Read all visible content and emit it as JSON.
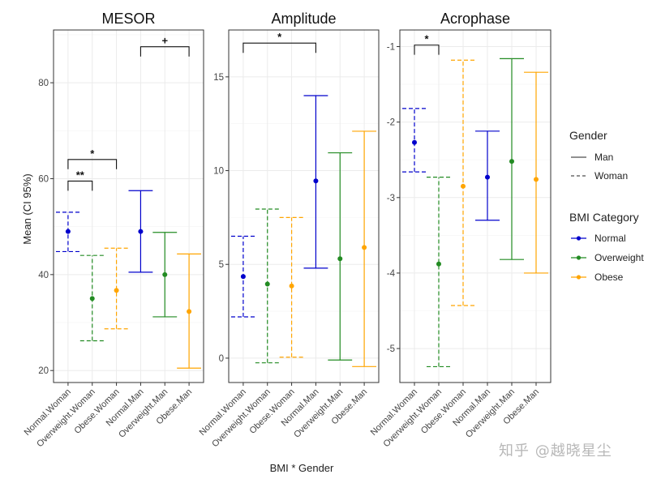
{
  "ylabel": "Mean (CI 95%)",
  "xlabel": "BMI * Gender",
  "categories": [
    "Normal.Woman",
    "Overweight.Woman",
    "Obese.Woman",
    "Normal.Man",
    "Overweight.Man",
    "Obese.Man"
  ],
  "colors": {
    "Normal": "#0000cc",
    "Overweight": "#228b22",
    "Obese": "#ffa500"
  },
  "legend": {
    "gender_title": "Gender",
    "gender_items": [
      "Man",
      "Woman"
    ],
    "bmi_title": "BMI Category",
    "bmi_items": [
      "Normal",
      "Overweight",
      "Obese"
    ]
  },
  "watermark": "知乎 @越晓星尘",
  "chart_data": [
    {
      "type": "errorbar",
      "title": "MESOR",
      "ylim": [
        17.5,
        91
      ],
      "yticks": [
        20,
        40,
        60,
        80
      ],
      "points": [
        {
          "category": "Normal.Woman",
          "bmi": "Normal",
          "gender": "Woman",
          "mean": 49,
          "lower": 44.8,
          "upper": 53
        },
        {
          "category": "Overweight.Woman",
          "bmi": "Overweight",
          "gender": "Woman",
          "mean": 35,
          "lower": 26.2,
          "upper": 44
        },
        {
          "category": "Obese.Woman",
          "bmi": "Obese",
          "gender": "Woman",
          "mean": 36.7,
          "lower": 28.7,
          "upper": 45.5
        },
        {
          "category": "Normal.Man",
          "bmi": "Normal",
          "gender": "Man",
          "mean": 49,
          "lower": 40.5,
          "upper": 57.5
        },
        {
          "category": "Overweight.Man",
          "bmi": "Overweight",
          "gender": "Man",
          "mean": 40,
          "lower": 31.2,
          "upper": 48.8
        },
        {
          "category": "Obese.Man",
          "bmi": "Obese",
          "gender": "Man",
          "mean": 32.3,
          "lower": 20.5,
          "upper": 44.3
        }
      ],
      "brackets": [
        {
          "from": 0,
          "to": 1,
          "y": 59.5,
          "label": "**"
        },
        {
          "from": 0,
          "to": 2,
          "y": 64,
          "label": "*"
        },
        {
          "from": 3,
          "to": 5,
          "y": 87.5,
          "label": "+"
        }
      ]
    },
    {
      "type": "errorbar",
      "title": "Amplitude",
      "ylim": [
        -1.3,
        17.5
      ],
      "yticks": [
        0,
        5,
        10,
        15
      ],
      "points": [
        {
          "category": "Normal.Woman",
          "bmi": "Normal",
          "gender": "Woman",
          "mean": 4.35,
          "lower": 2.2,
          "upper": 6.5
        },
        {
          "category": "Overweight.Woman",
          "bmi": "Overweight",
          "gender": "Woman",
          "mean": 3.95,
          "lower": -0.25,
          "upper": 7.95
        },
        {
          "category": "Obese.Woman",
          "bmi": "Obese",
          "gender": "Woman",
          "mean": 3.85,
          "lower": 0.05,
          "upper": 7.5
        },
        {
          "category": "Normal.Man",
          "bmi": "Normal",
          "gender": "Man",
          "mean": 9.45,
          "lower": 4.8,
          "upper": 14
        },
        {
          "category": "Overweight.Man",
          "bmi": "Overweight",
          "gender": "Man",
          "mean": 5.3,
          "lower": -0.1,
          "upper": 10.95
        },
        {
          "category": "Obese.Man",
          "bmi": "Obese",
          "gender": "Man",
          "mean": 5.9,
          "lower": -0.45,
          "upper": 12.1
        }
      ],
      "brackets": [
        {
          "from": 0,
          "to": 3,
          "y": 16.8,
          "label": "*"
        }
      ]
    },
    {
      "type": "errorbar",
      "title": "Acrophase",
      "ylim": [
        -5.45,
        -0.78
      ],
      "yticks": [
        -5,
        -4,
        -3,
        -2,
        -1
      ],
      "points": [
        {
          "category": "Normal.Woman",
          "bmi": "Normal",
          "gender": "Woman",
          "mean": -2.27,
          "lower": -2.66,
          "upper": -1.82
        },
        {
          "category": "Overweight.Woman",
          "bmi": "Overweight",
          "gender": "Woman",
          "mean": -3.88,
          "lower": -5.24,
          "upper": -2.73
        },
        {
          "category": "Obese.Woman",
          "bmi": "Obese",
          "gender": "Woman",
          "mean": -2.85,
          "lower": -4.43,
          "upper": -1.18
        },
        {
          "category": "Normal.Man",
          "bmi": "Normal",
          "gender": "Man",
          "mean": -2.73,
          "lower": -3.3,
          "upper": -2.12
        },
        {
          "category": "Overweight.Man",
          "bmi": "Overweight",
          "gender": "Man",
          "mean": -2.52,
          "lower": -3.82,
          "upper": -1.16
        },
        {
          "category": "Obese.Man",
          "bmi": "Obese",
          "gender": "Man",
          "mean": -2.76,
          "lower": -4.0,
          "upper": -1.34
        }
      ],
      "brackets": [
        {
          "from": 0,
          "to": 1,
          "y": -0.98,
          "label": "*"
        }
      ]
    }
  ]
}
